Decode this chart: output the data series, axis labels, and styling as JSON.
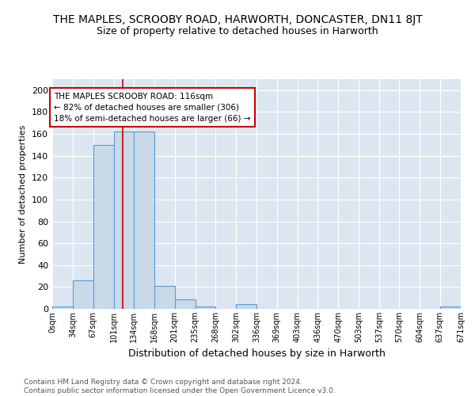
{
  "title": "THE MAPLES, SCROOBY ROAD, HARWORTH, DONCASTER, DN11 8JT",
  "subtitle": "Size of property relative to detached houses in Harworth",
  "xlabel": "Distribution of detached houses by size in Harworth",
  "ylabel": "Number of detached properties",
  "bin_edges": [
    0,
    34,
    67,
    101,
    134,
    168,
    201,
    235,
    268,
    302,
    336,
    369,
    403,
    436,
    470,
    503,
    537,
    570,
    604,
    637,
    671
  ],
  "bar_heights": [
    2,
    26,
    150,
    162,
    162,
    21,
    9,
    2,
    0,
    4,
    0,
    0,
    0,
    0,
    0,
    0,
    0,
    0,
    0,
    2
  ],
  "bar_color": "#c9d9e8",
  "bar_edge_color": "#5b9bd5",
  "vline_x": 116,
  "vline_color": "#cc0000",
  "annotation_text": "THE MAPLES SCROOBY ROAD: 116sqm\n← 82% of detached houses are smaller (306)\n18% of semi-detached houses are larger (66) →",
  "annotation_box_color": "#ffffff",
  "annotation_box_edge_color": "#cc0000",
  "ylim": [
    0,
    210
  ],
  "yticks": [
    0,
    20,
    40,
    60,
    80,
    100,
    120,
    140,
    160,
    180,
    200
  ],
  "background_color": "#dce6f1",
  "footer_text": "Contains HM Land Registry data © Crown copyright and database right 2024.\nContains public sector information licensed under the Open Government Licence v3.0.",
  "tick_labels": [
    "0sqm",
    "34sqm",
    "67sqm",
    "101sqm",
    "134sqm",
    "168sqm",
    "201sqm",
    "235sqm",
    "268sqm",
    "302sqm",
    "336sqm",
    "369sqm",
    "403sqm",
    "436sqm",
    "470sqm",
    "503sqm",
    "537sqm",
    "570sqm",
    "604sqm",
    "637sqm",
    "671sqm"
  ],
  "title_fontsize": 10,
  "subtitle_fontsize": 9,
  "ylabel_fontsize": 8,
  "xlabel_fontsize": 9
}
